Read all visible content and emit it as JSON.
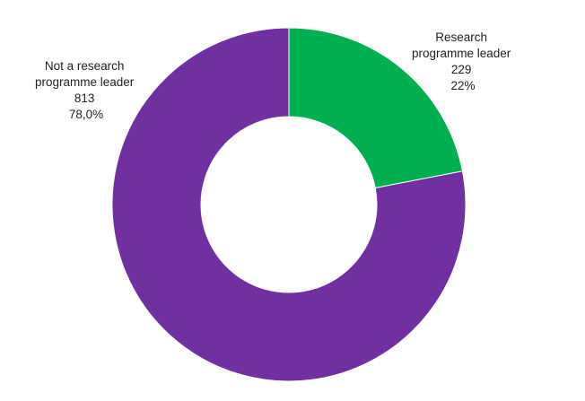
{
  "chart_data": {
    "type": "pie",
    "variant": "donut",
    "title": "",
    "slices": [
      {
        "name_lines": [
          "Research",
          "programme leader"
        ],
        "value": 229,
        "value_label": "229",
        "percent_label": "22%",
        "color": "#00B050"
      },
      {
        "name_lines": [
          "Not a research",
          "programme leader"
        ],
        "value": 813,
        "value_label": "813",
        "percent_label": "78,0%",
        "color": "#7030A0"
      }
    ],
    "start_angle_deg": 0,
    "direction": "clockwise",
    "legend": "none"
  }
}
